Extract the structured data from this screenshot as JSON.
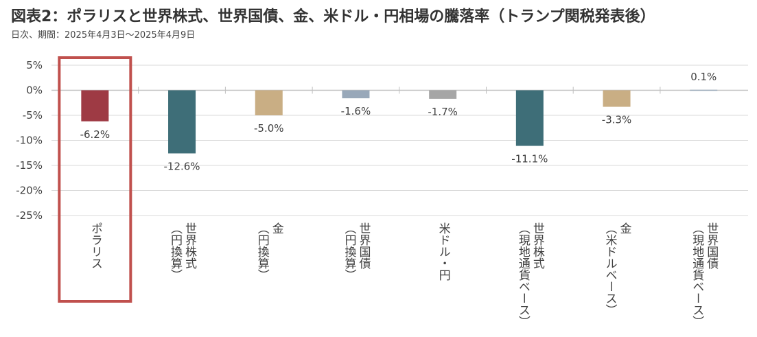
{
  "title": "図表2：ポラリスと世界株式、世界国債、金、米ドル・円相場の騰落率（トランプ関税発表後）",
  "subtitle": "日次、期間：2025年4月3日～2025年4月9日",
  "colors": {
    "highlight_box": "#c0504d",
    "gridline": "#d9d9d9",
    "axis": "#bfbfbf"
  },
  "chart_data": {
    "type": "bar",
    "categories": [
      "ポラリス",
      "世界株式\n（円換算）",
      "金\n（円換算）",
      "世界国債\n（円換算）",
      "米ドル・円",
      "世界株式\n（現地通貨ベース）",
      "金\n（米ドルベース）",
      "世界国債\n（現地通貨ベース）"
    ],
    "values": [
      -6.2,
      -12.6,
      -5.0,
      -1.6,
      -1.7,
      -11.1,
      -3.3,
      0.1
    ],
    "data_labels": [
      "-6.2%",
      "-12.6%",
      "-5.0%",
      "-1.6%",
      "-1.7%",
      "-11.1%",
      "-3.3%",
      "0.1%"
    ],
    "bar_colors": [
      "#9e3a44",
      "#3e6e78",
      "#c9ae84",
      "#98a8b9",
      "#a6a6a6",
      "#3e6e78",
      "#c9ae84",
      "#98a8b9"
    ],
    "y_ticks": [
      5,
      0,
      -5,
      -10,
      -15,
      -20,
      -25
    ],
    "y_tick_labels": [
      "5%",
      "0%",
      "-5%",
      "-10%",
      "-15%",
      "-20%",
      "-25%"
    ],
    "ylim": [
      -25,
      5
    ],
    "grid": true,
    "highlighted_category": "ポラリス"
  }
}
